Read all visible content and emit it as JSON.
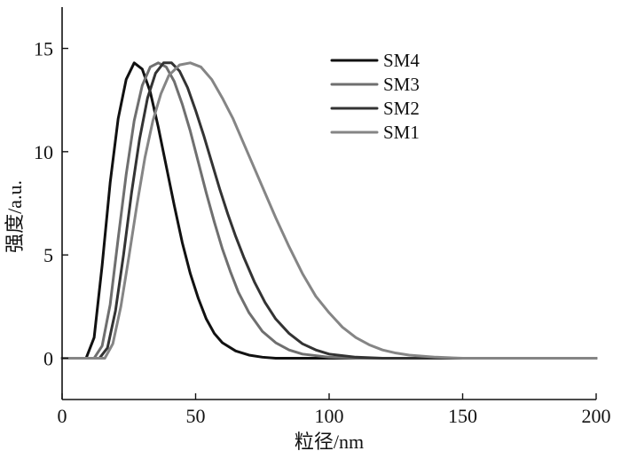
{
  "chart_data": {
    "type": "line",
    "title": "",
    "xlabel": "粒径/nm",
    "ylabel": "强度/a.u.",
    "xlim": [
      0,
      200
    ],
    "ylim": [
      -2,
      17
    ],
    "x_ticks": [
      0,
      50,
      100,
      150,
      200
    ],
    "y_ticks": [
      0,
      5,
      10,
      15
    ],
    "x_tick_labels": [
      "0",
      "50",
      "100",
      "150",
      "200"
    ],
    "y_tick_labels": [
      "0",
      "5",
      "10",
      "15"
    ],
    "grid": false,
    "legend_position": "top-right",
    "series": [
      {
        "name": "SM4",
        "color": "#111111",
        "points": [
          [
            0,
            0
          ],
          [
            9,
            0
          ],
          [
            12,
            1.0
          ],
          [
            15,
            4.5
          ],
          [
            18,
            8.5
          ],
          [
            21,
            11.6
          ],
          [
            24,
            13.5
          ],
          [
            27,
            14.3
          ],
          [
            30,
            14.0
          ],
          [
            33,
            12.9
          ],
          [
            36,
            11.2
          ],
          [
            39,
            9.3
          ],
          [
            42,
            7.4
          ],
          [
            45,
            5.6
          ],
          [
            48,
            4.1
          ],
          [
            51,
            2.9
          ],
          [
            54,
            1.9
          ],
          [
            57,
            1.2
          ],
          [
            60,
            0.75
          ],
          [
            65,
            0.35
          ],
          [
            70,
            0.15
          ],
          [
            75,
            0.05
          ],
          [
            80,
            0
          ],
          [
            200,
            0
          ]
        ]
      },
      {
        "name": "SM3",
        "color": "#6f6f6f",
        "points": [
          [
            0,
            0
          ],
          [
            12,
            0
          ],
          [
            15,
            0.6
          ],
          [
            18,
            2.6
          ],
          [
            21,
            5.8
          ],
          [
            24,
            8.9
          ],
          [
            27,
            11.5
          ],
          [
            30,
            13.2
          ],
          [
            33,
            14.1
          ],
          [
            36,
            14.3
          ],
          [
            39,
            14.1
          ],
          [
            42,
            13.4
          ],
          [
            45,
            12.3
          ],
          [
            48,
            11.0
          ],
          [
            51,
            9.5
          ],
          [
            54,
            8.0
          ],
          [
            57,
            6.6
          ],
          [
            60,
            5.3
          ],
          [
            63,
            4.2
          ],
          [
            66,
            3.2
          ],
          [
            70,
            2.2
          ],
          [
            75,
            1.3
          ],
          [
            80,
            0.75
          ],
          [
            85,
            0.4
          ],
          [
            90,
            0.2
          ],
          [
            100,
            0.05
          ],
          [
            110,
            0
          ],
          [
            200,
            0
          ]
        ]
      },
      {
        "name": "SM2",
        "color": "#333333",
        "points": [
          [
            0,
            0
          ],
          [
            14,
            0
          ],
          [
            17,
            0.5
          ],
          [
            20,
            2.3
          ],
          [
            23,
            5.0
          ],
          [
            26,
            8.0
          ],
          [
            29,
            10.6
          ],
          [
            32,
            12.6
          ],
          [
            35,
            13.8
          ],
          [
            38,
            14.3
          ],
          [
            41,
            14.3
          ],
          [
            44,
            13.9
          ],
          [
            47,
            13.1
          ],
          [
            50,
            12.0
          ],
          [
            53,
            10.8
          ],
          [
            56,
            9.5
          ],
          [
            59,
            8.2
          ],
          [
            62,
            7.0
          ],
          [
            65,
            5.9
          ],
          [
            68,
            4.9
          ],
          [
            72,
            3.7
          ],
          [
            76,
            2.7
          ],
          [
            80,
            1.9
          ],
          [
            85,
            1.2
          ],
          [
            90,
            0.7
          ],
          [
            95,
            0.4
          ],
          [
            100,
            0.2
          ],
          [
            110,
            0.05
          ],
          [
            120,
            0
          ],
          [
            200,
            0
          ]
        ]
      },
      {
        "name": "SM1",
        "color": "#858585",
        "points": [
          [
            0,
            0
          ],
          [
            16,
            0
          ],
          [
            19,
            0.7
          ],
          [
            22,
            2.5
          ],
          [
            25,
            4.9
          ],
          [
            28,
            7.4
          ],
          [
            31,
            9.7
          ],
          [
            34,
            11.5
          ],
          [
            37,
            12.8
          ],
          [
            40,
            13.7
          ],
          [
            44,
            14.2
          ],
          [
            48,
            14.3
          ],
          [
            52,
            14.1
          ],
          [
            56,
            13.5
          ],
          [
            60,
            12.6
          ],
          [
            64,
            11.6
          ],
          [
            68,
            10.4
          ],
          [
            72,
            9.2
          ],
          [
            76,
            8.0
          ],
          [
            80,
            6.8
          ],
          [
            85,
            5.4
          ],
          [
            90,
            4.1
          ],
          [
            95,
            3.0
          ],
          [
            100,
            2.2
          ],
          [
            105,
            1.5
          ],
          [
            110,
            1.0
          ],
          [
            115,
            0.65
          ],
          [
            120,
            0.4
          ],
          [
            125,
            0.25
          ],
          [
            130,
            0.15
          ],
          [
            140,
            0.05
          ],
          [
            150,
            0
          ],
          [
            200,
            0
          ]
        ]
      }
    ]
  }
}
